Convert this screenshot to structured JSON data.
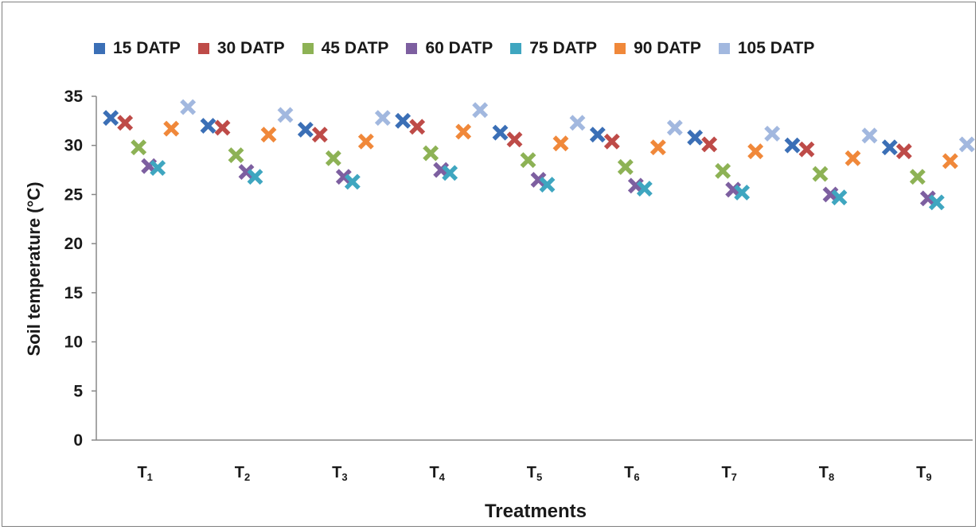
{
  "chart_data": {
    "type": "scatter",
    "marker": "x",
    "categories": [
      "T1",
      "T2",
      "T3",
      "T4",
      "T5",
      "T6",
      "T7",
      "T8",
      "T9"
    ],
    "category_main": [
      "T",
      "T",
      "T",
      "T",
      "T",
      "T",
      "T",
      "T",
      "T"
    ],
    "category_sub": [
      "1",
      "2",
      "3",
      "4",
      "5",
      "6",
      "7",
      "8",
      "9"
    ],
    "xlabel": "Treatments",
    "ylabel": "Soil temperature (°C)",
    "ylim": [
      0,
      35
    ],
    "yticks": [
      0,
      5,
      10,
      15,
      20,
      25,
      30,
      35
    ],
    "grid": false,
    "legend": "top",
    "series": [
      {
        "name": "15 DATP",
        "color": "#3b6fb6",
        "values": [
          32.8,
          32.0,
          31.6,
          32.5,
          31.3,
          31.1,
          30.8,
          30.0,
          29.8
        ]
      },
      {
        "name": "30 DATP",
        "color": "#be4b48",
        "values": [
          32.3,
          31.8,
          31.1,
          31.9,
          30.6,
          30.4,
          30.1,
          29.6,
          29.4
        ]
      },
      {
        "name": "45 DATP",
        "color": "#8db255",
        "values": [
          29.8,
          29.0,
          28.7,
          29.2,
          28.5,
          27.8,
          27.4,
          27.1,
          26.8
        ]
      },
      {
        "name": "60 DATP",
        "color": "#7d5fa0",
        "values": [
          27.9,
          27.3,
          26.8,
          27.5,
          26.5,
          25.9,
          25.5,
          25.0,
          24.6
        ]
      },
      {
        "name": "75 DATP",
        "color": "#3fa6c0",
        "values": [
          27.7,
          26.8,
          26.3,
          27.2,
          26.0,
          25.6,
          25.2,
          24.7,
          24.2
        ]
      },
      {
        "name": "90 DATP",
        "color": "#f0883a",
        "values": [
          31.7,
          31.1,
          30.4,
          31.4,
          30.2,
          29.8,
          29.4,
          28.7,
          28.4
        ]
      },
      {
        "name": "105 DATP",
        "color": "#a2b8df",
        "values": [
          33.9,
          33.1,
          32.8,
          33.6,
          32.3,
          31.8,
          31.2,
          31.0,
          30.1
        ]
      }
    ]
  }
}
